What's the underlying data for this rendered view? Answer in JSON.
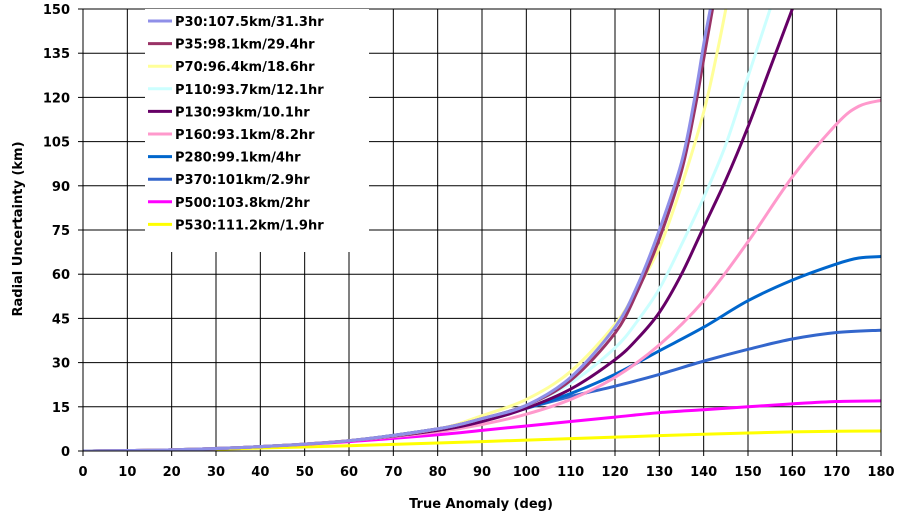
{
  "chart_data": {
    "type": "line",
    "title": "",
    "xlabel": "True Anomaly (deg)",
    "ylabel": "Radial Uncertainty (km)",
    "xlim": [
      0,
      180
    ],
    "ylim": [
      0,
      150
    ],
    "xticks": [
      0,
      10,
      20,
      30,
      40,
      50,
      60,
      70,
      80,
      90,
      100,
      110,
      120,
      130,
      140,
      150,
      160,
      170,
      180
    ],
    "yticks": [
      0,
      15,
      30,
      45,
      60,
      75,
      90,
      105,
      120,
      135,
      150
    ],
    "grid": true,
    "legend_position": "top-left",
    "series": [
      {
        "name": "P30:107.5km/31.3hr",
        "color": "#8f8fe8",
        "x": [
          0,
          20,
          40,
          60,
          80,
          90,
          100,
          110,
          120,
          125,
          130,
          135,
          138,
          140,
          141.5
        ],
        "y": [
          0,
          0.4,
          1.5,
          3.5,
          7.5,
          11,
          15.5,
          25,
          42,
          56,
          75,
          98,
          120,
          138,
          150
        ]
      },
      {
        "name": "P35:98.1km/29.4hr",
        "color": "#993366",
        "x": [
          0,
          20,
          40,
          60,
          80,
          90,
          100,
          110,
          120,
          125,
          130,
          135,
          138,
          140,
          142
        ],
        "y": [
          0,
          0.4,
          1.5,
          3.5,
          7.5,
          11,
          15.5,
          24,
          40,
          54,
          72,
          95,
          116,
          133,
          150
        ]
      },
      {
        "name": "P70:96.4km/18.6hr",
        "color": "#ffff99",
        "x": [
          0,
          20,
          40,
          60,
          80,
          90,
          100,
          110,
          120,
          125,
          130,
          135,
          140,
          143,
          145
        ],
        "y": [
          0,
          0.4,
          1.5,
          3.5,
          7.5,
          12,
          17.5,
          27,
          43,
          55,
          69,
          90,
          115,
          135,
          150
        ]
      },
      {
        "name": "P110:93.7km/12.1hr",
        "color": "#ccffff",
        "x": [
          0,
          20,
          40,
          60,
          80,
          90,
          100,
          110,
          120,
          125,
          130,
          135,
          140,
          145,
          150,
          155
        ],
        "y": [
          0,
          0.4,
          1.5,
          3.5,
          7.5,
          11,
          15.5,
          23,
          35,
          44,
          55,
          70,
          86,
          104,
          127,
          150
        ]
      },
      {
        "name": "P130:93km/10.1hr",
        "color": "#660066",
        "x": [
          0,
          20,
          40,
          60,
          80,
          90,
          100,
          110,
          120,
          125,
          130,
          135,
          140,
          145,
          150,
          155,
          160
        ],
        "y": [
          0,
          0.4,
          1.5,
          3.5,
          7,
          10,
          14.5,
          21,
          31,
          38,
          47,
          60,
          76,
          92,
          110,
          130,
          150
        ]
      },
      {
        "name": "P160:93.1km/8.2hr",
        "color": "#ff99cc",
        "x": [
          0,
          20,
          40,
          60,
          80,
          90,
          100,
          110,
          120,
          130,
          140,
          150,
          160,
          170,
          175,
          180
        ],
        "y": [
          0,
          0.4,
          1.5,
          3.5,
          6.5,
          9,
          12.5,
          17.5,
          25,
          36,
          51,
          71,
          93,
          111,
          117,
          119
        ]
      },
      {
        "name": "P280:99.1km/4hr",
        "color": "#0066cc",
        "x": [
          0,
          20,
          40,
          60,
          80,
          90,
          100,
          110,
          120,
          130,
          140,
          150,
          160,
          170,
          175,
          180
        ],
        "y": [
          0,
          0.4,
          1.5,
          3.5,
          7.5,
          10.5,
          14.5,
          19.5,
          26,
          34,
          42,
          51,
          58,
          63.5,
          65.5,
          66
        ]
      },
      {
        "name": "P370:101km/2.9hr",
        "color": "#3366cc",
        "x": [
          0,
          20,
          40,
          60,
          80,
          90,
          100,
          110,
          120,
          130,
          140,
          150,
          160,
          170,
          180
        ],
        "y": [
          0,
          0.4,
          1.5,
          3.5,
          7.5,
          10.5,
          14.5,
          18.5,
          22,
          26,
          30.5,
          34.5,
          38,
          40.2,
          41
        ]
      },
      {
        "name": "P500:103.8km/2hr",
        "color": "#ff00ff",
        "x": [
          0,
          20,
          40,
          60,
          80,
          90,
          100,
          110,
          120,
          130,
          140,
          150,
          160,
          170,
          180
        ],
        "y": [
          0,
          0.4,
          1.5,
          3.2,
          5.5,
          7,
          8.5,
          10,
          11.5,
          13,
          14,
          15,
          16,
          16.8,
          17
        ]
      },
      {
        "name": "P530:111.2km/1.9hr",
        "color": "#ffff00",
        "x": [
          0,
          20,
          40,
          60,
          80,
          90,
          100,
          110,
          120,
          130,
          140,
          150,
          160,
          170,
          180
        ],
        "y": [
          0,
          0.3,
          1,
          1.8,
          2.7,
          3.2,
          3.7,
          4.2,
          4.7,
          5.2,
          5.7,
          6.1,
          6.5,
          6.7,
          6.8
        ]
      }
    ]
  }
}
